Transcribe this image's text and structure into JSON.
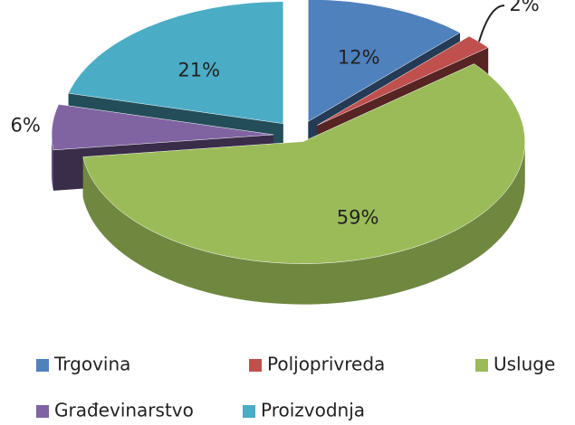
{
  "chart_data": {
    "type": "pie",
    "categories": [
      "Trgovina",
      "Poljoprivreda",
      "Usluge",
      "Građevinarstvo",
      "Proizvodnja"
    ],
    "values": [
      12,
      2,
      59,
      6,
      21
    ],
    "value_labels": [
      "12%",
      "2%",
      "59%",
      "6%",
      "21%"
    ],
    "colors": [
      "#4f81bd",
      "#c0504d",
      "#9bbb59",
      "#8064a2",
      "#4bacc6"
    ],
    "three_d": true,
    "exploded": true,
    "legend": "bottom"
  }
}
